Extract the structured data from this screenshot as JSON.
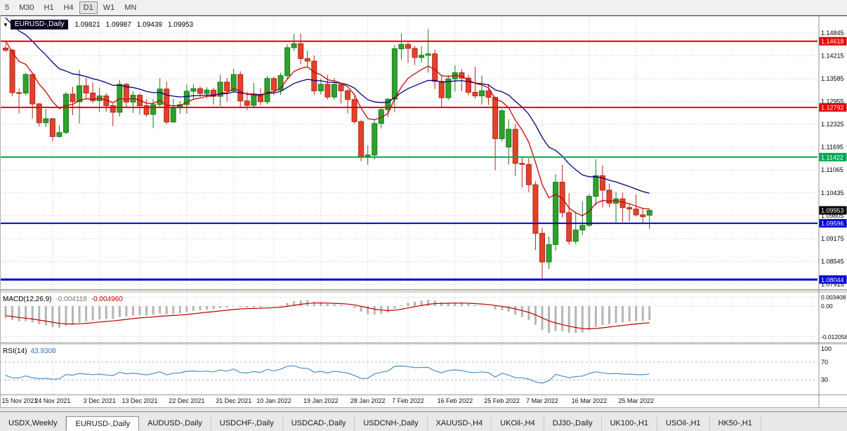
{
  "toolbar": {
    "timeframes": [
      {
        "label": "5",
        "active": false
      },
      {
        "label": "M30",
        "active": false
      },
      {
        "label": "H1",
        "active": false
      },
      {
        "label": "H4",
        "active": false
      },
      {
        "label": "D1",
        "active": true
      },
      {
        "label": "W1",
        "active": false
      },
      {
        "label": "MN",
        "active": false
      }
    ]
  },
  "colors": {
    "bull": "#2ea12e",
    "bull_border": "#1c7a1c",
    "bear": "#e2422c",
    "bear_border": "#b02818",
    "ma_fast": "#cc0000",
    "ma_slow": "#000080",
    "macd_histogram": "#b5b5b5",
    "macd_signal": "#c00000",
    "rsi_line": "#4a90c8",
    "grid": "#c8c8c8",
    "current_price_box": "#000000"
  },
  "chart_data": {
    "type": "candlestick",
    "symbol_period": "EURUSD-,Daily",
    "ohlc_display": {
      "open": "1.09821",
      "high": "1.09987",
      "low": "1.09439",
      "close": "1.09953"
    },
    "price_axis": {
      "ticks": [
        "1.14845",
        "1.14215",
        "1.13585",
        "1.12955",
        "1.12325",
        "1.11695",
        "1.11065",
        "1.10435",
        "1.09805",
        "1.09175",
        "1.08545",
        "1.07915"
      ]
    },
    "x_axis": {
      "labels": [
        {
          "text": "15 Nov 2021",
          "index": 0
        },
        {
          "text": "24 Nov 2021",
          "index": 7
        },
        {
          "text": "3 Dec 2021",
          "index": 14
        },
        {
          "text": "13 Dec 2021",
          "index": 20
        },
        {
          "text": "22 Dec 2021",
          "index": 27
        },
        {
          "text": "31 Dec 2021",
          "index": 34
        },
        {
          "text": "10 Jan 2022",
          "index": 40
        },
        {
          "text": "19 Jan 2022",
          "index": 47
        },
        {
          "text": "28 Jan 2022",
          "index": 54
        },
        {
          "text": "7 Feb 2022",
          "index": 60
        },
        {
          "text": "16 Feb 2022",
          "index": 67
        },
        {
          "text": "25 Feb 2022",
          "index": 74
        },
        {
          "text": "7 Mar 2022",
          "index": 80
        },
        {
          "text": "16 Mar 2022",
          "index": 87
        },
        {
          "text": "25 Mar 2022",
          "index": 94
        }
      ]
    },
    "hlines": [
      {
        "price": 1.14618,
        "label": "1.14618",
        "color": "#e60000",
        "width": 2
      },
      {
        "price": 1.12792,
        "label": "1.12792",
        "color": "#e60000",
        "width": 2
      },
      {
        "price": 1.11422,
        "label": "1.11422",
        "color": "#00a651",
        "width": 2
      },
      {
        "price": 1.09596,
        "label": "1.09596",
        "color": "#0000d0",
        "width": 2
      },
      {
        "price": 1.08044,
        "label": "1.08044",
        "color": "#0000d0",
        "width": 3
      }
    ],
    "current_price": {
      "value": 1.09953,
      "label": "1.09953"
    },
    "overlays": {
      "ma_fast": {
        "color": "#cc0000",
        "period_estimate": 8
      },
      "ma_slow": {
        "color": "#000080",
        "period_estimate": 21
      }
    },
    "macd": {
      "label": "MACD(12,26,9)",
      "value_main": "-0.004118",
      "value_signal": "-0.004960",
      "axis_labels": [
        "0.003408",
        "0.00",
        "-0.012058"
      ],
      "axis_values": [
        0.003408,
        0,
        -0.012058
      ]
    },
    "rsi": {
      "label": "RSI(14)",
      "value": "43.9308",
      "levels": [
        70,
        30
      ],
      "axis_labels": [
        "100",
        "70",
        "30"
      ],
      "axis_values": [
        100,
        70,
        30
      ]
    },
    "ohlc": [
      [
        1.1443,
        1.1456,
        1.1432,
        1.1437
      ],
      [
        1.1437,
        1.1441,
        1.131,
        1.132
      ],
      [
        1.132,
        1.1332,
        1.1263,
        1.1319
      ],
      [
        1.1319,
        1.1374,
        1.1313,
        1.137
      ],
      [
        1.137,
        1.1373,
        1.1249,
        1.1289
      ],
      [
        1.1289,
        1.1291,
        1.1226,
        1.1237
      ],
      [
        1.1237,
        1.1275,
        1.1225,
        1.1248
      ],
      [
        1.1248,
        1.125,
        1.1186,
        1.1199
      ],
      [
        1.1199,
        1.123,
        1.1196,
        1.121
      ],
      [
        1.121,
        1.1322,
        1.1206,
        1.1316
      ],
      [
        1.1316,
        1.1336,
        1.1258,
        1.1295
      ],
      [
        1.1295,
        1.1383,
        1.1235,
        1.1339
      ],
      [
        1.1339,
        1.136,
        1.1305,
        1.1319
      ],
      [
        1.1319,
        1.1348,
        1.1291,
        1.1298
      ],
      [
        1.1298,
        1.1334,
        1.1267,
        1.1311
      ],
      [
        1.1311,
        1.1319,
        1.1267,
        1.1284
      ],
      [
        1.1284,
        1.129,
        1.1228,
        1.1266
      ],
      [
        1.1266,
        1.1355,
        1.1254,
        1.1343
      ],
      [
        1.1343,
        1.1347,
        1.128,
        1.1294
      ],
      [
        1.1294,
        1.1324,
        1.1264,
        1.1313
      ],
      [
        1.1313,
        1.1319,
        1.126,
        1.1284
      ],
      [
        1.1284,
        1.1302,
        1.1254,
        1.126
      ],
      [
        1.126,
        1.1303,
        1.1222,
        1.1287
      ],
      [
        1.1287,
        1.136,
        1.1281,
        1.133
      ],
      [
        1.133,
        1.135,
        1.1233,
        1.1239
      ],
      [
        1.1239,
        1.1303,
        1.1236,
        1.1278
      ],
      [
        1.1278,
        1.1297,
        1.1262,
        1.1287
      ],
      [
        1.1287,
        1.1342,
        1.1262,
        1.1324
      ],
      [
        1.1324,
        1.1343,
        1.1303,
        1.1331
      ],
      [
        1.1331,
        1.1338,
        1.1308,
        1.1318
      ],
      [
        1.1318,
        1.1335,
        1.1304,
        1.1327
      ],
      [
        1.1327,
        1.1334,
        1.1287,
        1.131
      ],
      [
        1.131,
        1.1369,
        1.1283,
        1.1349
      ],
      [
        1.1349,
        1.136,
        1.1296,
        1.1325
      ],
      [
        1.1325,
        1.1386,
        1.1321,
        1.137
      ],
      [
        1.137,
        1.1379,
        1.1279,
        1.1297
      ],
      [
        1.1297,
        1.1323,
        1.1272,
        1.1285
      ],
      [
        1.1285,
        1.1347,
        1.128,
        1.1313
      ],
      [
        1.1313,
        1.1332,
        1.1285,
        1.1295
      ],
      [
        1.1295,
        1.1366,
        1.1289,
        1.1359
      ],
      [
        1.1359,
        1.1363,
        1.1313,
        1.1327
      ],
      [
        1.1327,
        1.1375,
        1.1314,
        1.1367
      ],
      [
        1.1367,
        1.1453,
        1.1357,
        1.1444
      ],
      [
        1.1444,
        1.1482,
        1.1435,
        1.1455
      ],
      [
        1.1455,
        1.1483,
        1.1398,
        1.1414
      ],
      [
        1.1414,
        1.1436,
        1.1392,
        1.1407
      ],
      [
        1.1407,
        1.1423,
        1.1313,
        1.1325
      ],
      [
        1.1325,
        1.1358,
        1.1315,
        1.1343
      ],
      [
        1.1343,
        1.1369,
        1.1301,
        1.1308
      ],
      [
        1.1308,
        1.136,
        1.13,
        1.1343
      ],
      [
        1.1343,
        1.1344,
        1.129,
        1.1325
      ],
      [
        1.1325,
        1.133,
        1.1263,
        1.1301
      ],
      [
        1.1301,
        1.131,
        1.1234,
        1.124
      ],
      [
        1.124,
        1.1245,
        1.1131,
        1.1144
      ],
      [
        1.1144,
        1.1174,
        1.1121,
        1.1148
      ],
      [
        1.1148,
        1.1247,
        1.1135,
        1.1235
      ],
      [
        1.1235,
        1.1279,
        1.1221,
        1.1273
      ],
      [
        1.1273,
        1.1305,
        1.1253,
        1.1302
      ],
      [
        1.1302,
        1.1451,
        1.1266,
        1.1441
      ],
      [
        1.1441,
        1.1483,
        1.1411,
        1.1453
      ],
      [
        1.1453,
        1.1459,
        1.1402,
        1.1442
      ],
      [
        1.1442,
        1.1449,
        1.1396,
        1.1417
      ],
      [
        1.1417,
        1.1448,
        1.1403,
        1.1423
      ],
      [
        1.1423,
        1.1495,
        1.1375,
        1.1427
      ],
      [
        1.1427,
        1.1439,
        1.133,
        1.1351
      ],
      [
        1.1351,
        1.1369,
        1.1278,
        1.1306
      ],
      [
        1.1306,
        1.1369,
        1.13,
        1.1358
      ],
      [
        1.1358,
        1.1395,
        1.1323,
        1.1375
      ],
      [
        1.1375,
        1.1385,
        1.1324,
        1.136
      ],
      [
        1.136,
        1.1369,
        1.1312,
        1.1321
      ],
      [
        1.1321,
        1.1391,
        1.1304,
        1.1311
      ],
      [
        1.1311,
        1.1367,
        1.1287,
        1.1325
      ],
      [
        1.1325,
        1.1344,
        1.1286,
        1.1307
      ],
      [
        1.1307,
        1.1309,
        1.1106,
        1.1193
      ],
      [
        1.1193,
        1.1275,
        1.1185,
        1.127
      ],
      [
        1.117,
        1.1246,
        1.1122,
        1.1219
      ],
      [
        1.1219,
        1.1234,
        1.109,
        1.1125
      ],
      [
        1.1125,
        1.1143,
        1.1058,
        1.1122
      ],
      [
        1.1122,
        1.1139,
        1.1045,
        1.1066
      ],
      [
        1.1066,
        1.1075,
        1.0886,
        1.0932
      ],
      [
        1.0932,
        1.0948,
        1.0806,
        1.0853
      ],
      [
        1.0853,
        1.0923,
        1.0834,
        1.0901
      ],
      [
        1.0901,
        1.1095,
        1.0884,
        1.1073
      ],
      [
        1.1073,
        1.1121,
        1.0976,
        1.0989
      ],
      [
        1.0989,
        1.1043,
        1.0901,
        1.091
      ],
      [
        1.091,
        1.0992,
        1.0902,
        1.0941
      ],
      [
        1.0941,
        1.102,
        1.0927,
        1.0954
      ],
      [
        1.0954,
        1.104,
        1.095,
        1.1034
      ],
      [
        1.1034,
        1.1137,
        1.1009,
        1.1091
      ],
      [
        1.1091,
        1.112,
        1.1003,
        1.1051
      ],
      [
        1.1051,
        1.1069,
        1.1004,
        1.1015
      ],
      [
        1.1015,
        1.1046,
        1.0962,
        1.1027
      ],
      [
        1.1027,
        1.1044,
        1.0963,
        1.1003
      ],
      [
        1.1003,
        1.1014,
        1.0964,
        1.0999
      ],
      [
        1.0999,
        1.1039,
        1.0979,
        1.0983
      ],
      [
        1.0983,
        1.1,
        1.0958,
        1.0978
      ],
      [
        1.09821,
        1.09987,
        1.09439,
        1.09953
      ]
    ]
  },
  "tab_bar": {
    "tabs": [
      {
        "label": "USDX,Weekly",
        "active": false
      },
      {
        "label": "EURUSD-,Daily",
        "active": true
      },
      {
        "label": "AUDUSD-,Daily",
        "active": false
      },
      {
        "label": "USDCHF-,Daily",
        "active": false
      },
      {
        "label": "USDCAD-,Daily",
        "active": false
      },
      {
        "label": "USDCNH-,Daily",
        "active": false
      },
      {
        "label": "XAUUSD-,H4",
        "active": false
      },
      {
        "label": "UKOil-,H4",
        "active": false
      },
      {
        "label": "DJ30-,Daily",
        "active": false
      },
      {
        "label": "UK100-,H1",
        "active": false
      },
      {
        "label": "USOil-,H1",
        "active": false
      },
      {
        "label": "HK50-,H1",
        "active": false
      }
    ]
  }
}
